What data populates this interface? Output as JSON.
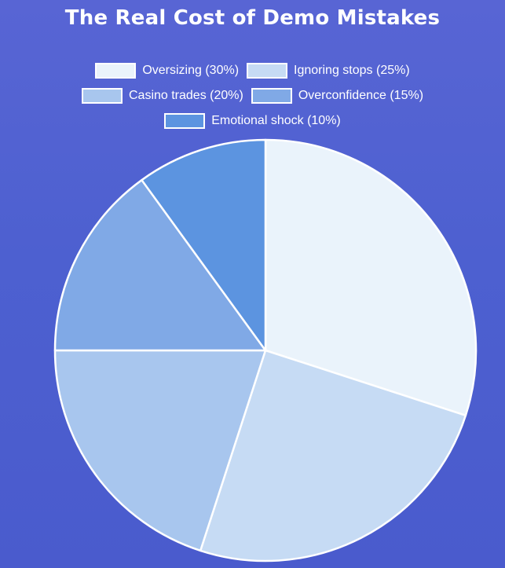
{
  "chart_data": {
    "type": "pie",
    "title": "The Real Cost of Demo Mistakes",
    "legend_position": "top",
    "categories": [
      "Oversizing (30%)",
      "Ignoring stops (25%)",
      "Casino trades (20%)",
      "Overconfidence (15%)",
      "Emotional shock (10%)"
    ],
    "values": [
      30,
      25,
      20,
      15,
      10
    ],
    "colors": [
      "#EAF3FB",
      "#C6DBF4",
      "#A8C6EE",
      "#80A9E6",
      "#5C94E0"
    ]
  }
}
